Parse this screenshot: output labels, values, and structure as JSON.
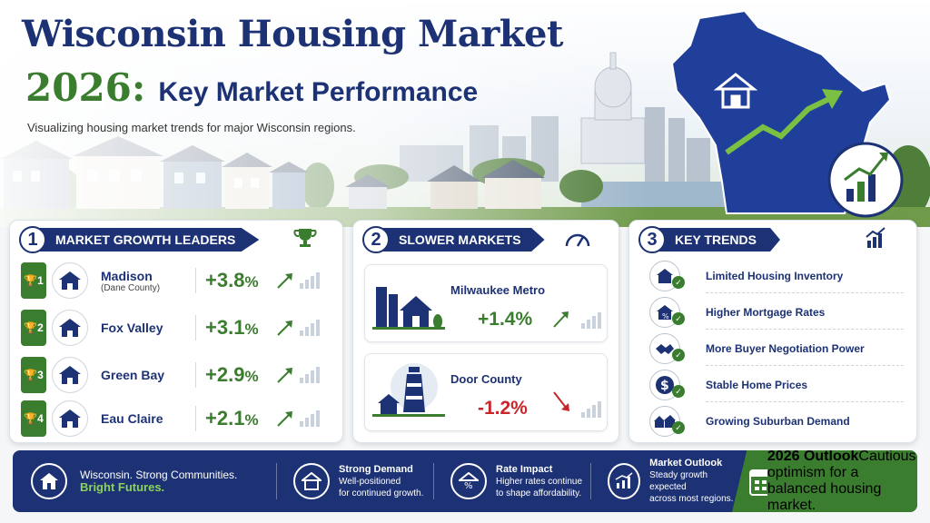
{
  "header": {
    "title": "Wisconsin Housing Market",
    "year": "2026:",
    "subtitle": "Key Market Performance",
    "tagline": "Visualizing housing market trends for major Wisconsin regions."
  },
  "panels": {
    "growth": {
      "number": "1",
      "title": "MARKET GROWTH LEADERS",
      "items": [
        {
          "rank": "1",
          "name": "Madison",
          "sub": "(Dane County)",
          "value": "+3.8",
          "unit": "%"
        },
        {
          "rank": "2",
          "name": "Fox Valley",
          "sub": "",
          "value": "+3.1",
          "unit": "%"
        },
        {
          "rank": "3",
          "name": "Green Bay",
          "sub": "",
          "value": "+2.9",
          "unit": "%"
        },
        {
          "rank": "4",
          "name": "Eau Claire",
          "sub": "",
          "value": "+2.1",
          "unit": "%"
        }
      ]
    },
    "slower": {
      "number": "2",
      "title": "SLOWER MARKETS",
      "items": [
        {
          "name": "Milwaukee Metro",
          "value": "+1.4%",
          "color": "#3a7d2e"
        },
        {
          "name": "Door County",
          "value": "-1.2%",
          "color": "#c8262b"
        }
      ]
    },
    "trends": {
      "number": "3",
      "title": "KEY TRENDS",
      "items": [
        {
          "label": "Limited Housing Inventory",
          "icon": "house-icon"
        },
        {
          "label": "Higher Mortgage Rates",
          "icon": "percent-house-icon"
        },
        {
          "label": "More Buyer Negotiation Power",
          "icon": "handshake-icon"
        },
        {
          "label": "Stable Home Prices",
          "icon": "dollar-icon"
        },
        {
          "label": "Growing Suburban Demand",
          "icon": "neighborhood-icon"
        }
      ]
    }
  },
  "footer": {
    "brand_line1": "Wisconsin. Strong Communities.",
    "brand_line2": "Bright Futures.",
    "items": [
      {
        "title": "Strong Demand",
        "text1": "Well-positioned",
        "text2": "for continued growth."
      },
      {
        "title": "Rate Impact",
        "text1": "Higher rates continue",
        "text2": "to shape affordability."
      },
      {
        "title": "Market Outlook",
        "text1": "Steady growth expected",
        "text2": "across most regions."
      }
    ],
    "outlook": {
      "title": "2026 Outlook",
      "text1": "Cautious optimism for a",
      "text2": "balanced housing market."
    }
  },
  "colors": {
    "navy": "#1d3274",
    "green": "#3a7d2e",
    "red": "#c8262b"
  }
}
